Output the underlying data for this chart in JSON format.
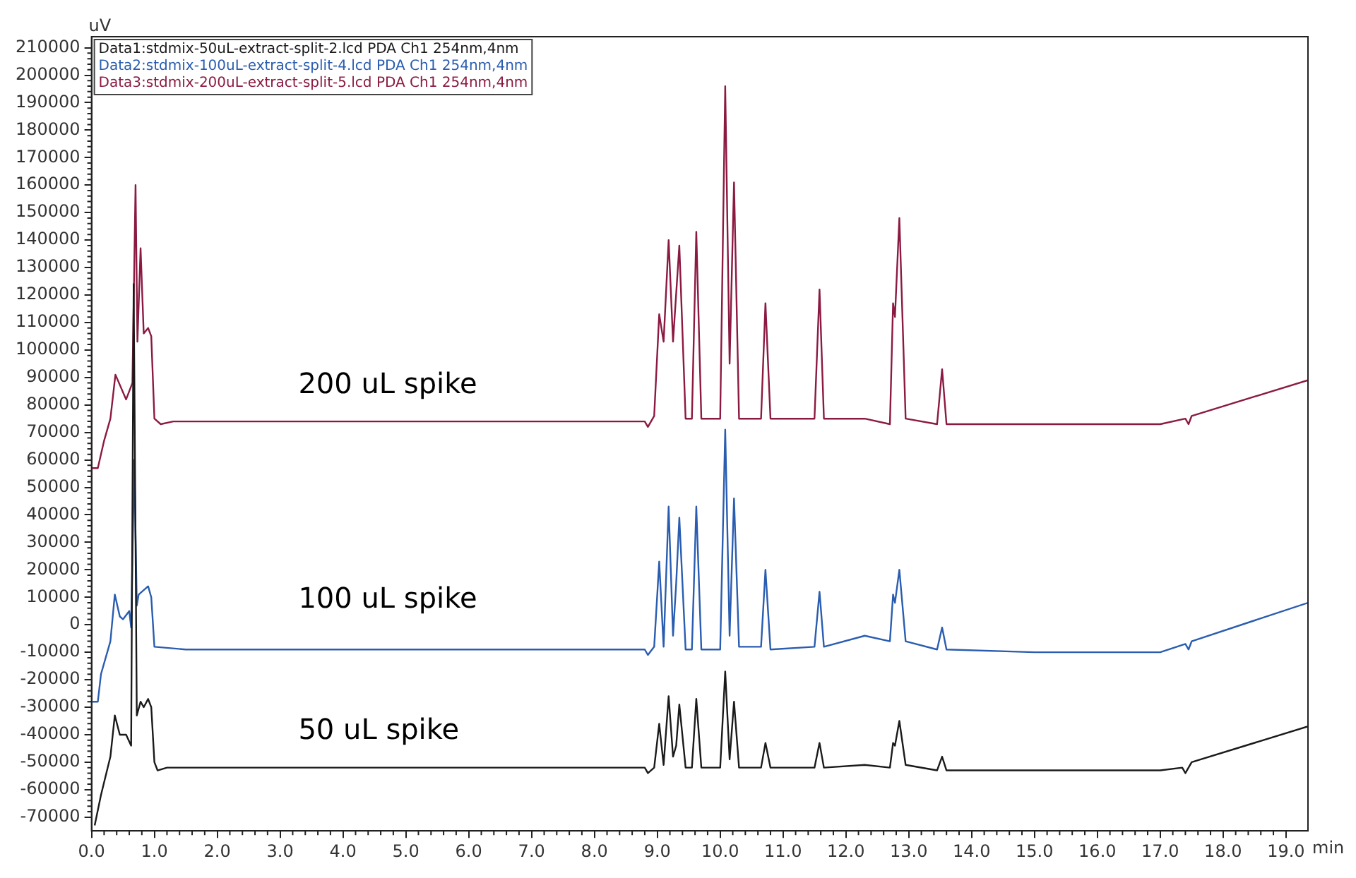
{
  "chart_data": {
    "type": "line",
    "xlabel": "min",
    "ylabel": "uV",
    "xlim": [
      0,
      19.35
    ],
    "ylim": [
      -75000,
      214000
    ],
    "xticks": [
      {
        "value": 0,
        "label": "0.0"
      },
      {
        "value": 1,
        "label": "1.0"
      },
      {
        "value": 2,
        "label": "2.0"
      },
      {
        "value": 3,
        "label": "3.0"
      },
      {
        "value": 4,
        "label": "4.0"
      },
      {
        "value": 5,
        "label": "5.0"
      },
      {
        "value": 6,
        "label": "6.0"
      },
      {
        "value": 7,
        "label": "7.0"
      },
      {
        "value": 8,
        "label": "8.0"
      },
      {
        "value": 9,
        "label": "9.0"
      },
      {
        "value": 10,
        "label": "10.0"
      },
      {
        "value": 11,
        "label": "11.0"
      },
      {
        "value": 12,
        "label": "12.0"
      },
      {
        "value": 13,
        "label": "13.0"
      },
      {
        "value": 14,
        "label": "14.0"
      },
      {
        "value": 15,
        "label": "15.0"
      },
      {
        "value": 16,
        "label": "16.0"
      },
      {
        "value": 17,
        "label": "17.0"
      },
      {
        "value": 18,
        "label": "18.0"
      },
      {
        "value": 19,
        "label": "19.0"
      }
    ],
    "yticks": [
      -70000,
      -60000,
      -50000,
      -40000,
      -30000,
      -20000,
      -10000,
      0,
      10000,
      20000,
      30000,
      40000,
      50000,
      60000,
      70000,
      80000,
      90000,
      100000,
      110000,
      120000,
      130000,
      140000,
      150000,
      160000,
      170000,
      180000,
      190000,
      200000,
      210000
    ],
    "grid": false,
    "legend": "top left",
    "marker": "none",
    "line_style": "solid",
    "series": [
      {
        "name": "Data1:stdmix-50uL-extract-split-2.lcd PDA Ch1 254nm,4nm",
        "color": "#1a1a1a",
        "x": [
          0.05,
          0.15,
          0.3,
          0.37,
          0.45,
          0.55,
          0.63,
          0.67,
          0.72,
          0.78,
          0.83,
          0.9,
          0.95,
          1.0,
          1.05,
          1.2,
          6.0,
          8.8,
          8.85,
          8.95,
          9.03,
          9.1,
          9.18,
          9.25,
          9.3,
          9.35,
          9.45,
          9.55,
          9.62,
          9.7,
          10.0,
          10.08,
          10.15,
          10.22,
          10.3,
          10.65,
          10.72,
          10.8,
          11.5,
          11.58,
          11.65,
          12.3,
          12.7,
          12.75,
          12.78,
          12.85,
          12.95,
          13.45,
          13.53,
          13.6,
          15.0,
          17.0,
          17.35,
          17.4,
          17.5,
          19.35
        ],
        "values": [
          -73000,
          -62000,
          -48000,
          -33000,
          -40000,
          -40000,
          -44000,
          124000,
          -33000,
          -28000,
          -30000,
          -27000,
          -30000,
          -50000,
          -53000,
          -52000,
          -52000,
          -52000,
          -54000,
          -52000,
          -36000,
          -51000,
          -26000,
          -48000,
          -44000,
          -29000,
          -52000,
          -52000,
          -27000,
          -52000,
          -52000,
          -17000,
          -49000,
          -28000,
          -52000,
          -52000,
          -43000,
          -52000,
          -52000,
          -43000,
          -52000,
          -51000,
          -52000,
          -43000,
          -44000,
          -35000,
          -51000,
          -53000,
          -48000,
          -53000,
          -53000,
          -53000,
          -52000,
          -54000,
          -50000,
          -37000
        ]
      },
      {
        "name": "Data2:stdmix-100uL-extract-split-4.lcd PDA Ch1 254nm,4nm",
        "color": "#2a5db0",
        "x": [
          0,
          0.1,
          0.15,
          0.3,
          0.37,
          0.45,
          0.5,
          0.6,
          0.63,
          0.68,
          0.72,
          0.75,
          0.9,
          0.95,
          1.0,
          1.5,
          6.0,
          8.8,
          8.85,
          8.95,
          9.03,
          9.1,
          9.18,
          9.25,
          9.3,
          9.35,
          9.45,
          9.55,
          9.62,
          9.7,
          10.0,
          10.08,
          10.15,
          10.22,
          10.3,
          10.65,
          10.72,
          10.8,
          11.5,
          11.58,
          11.65,
          12.3,
          12.7,
          12.75,
          12.78,
          12.85,
          12.95,
          13.45,
          13.53,
          13.6,
          15.0,
          17.0,
          17.4,
          17.45,
          17.5,
          19.35
        ],
        "values": [
          -28000,
          -28000,
          -18000,
          -6000,
          11000,
          3000,
          2000,
          5000,
          -1000,
          60000,
          7000,
          11000,
          14000,
          10000,
          -8000,
          -9000,
          -9000,
          -9000,
          -11000,
          -8000,
          23000,
          -8000,
          43000,
          -4000,
          15000,
          39000,
          -9000,
          -9000,
          43000,
          -9000,
          -9000,
          71000,
          -4000,
          46000,
          -8000,
          -8000,
          20000,
          -9000,
          -8000,
          12000,
          -8000,
          -4000,
          -6000,
          11000,
          8000,
          20000,
          -6000,
          -9000,
          -1000,
          -9000,
          -10000,
          -10000,
          -7000,
          -9000,
          -6000,
          8000
        ]
      },
      {
        "name": "Data3:stdmix-200uL-extract-split-5.lcd PDA Ch1 254nm,4nm",
        "color": "#8b1a42",
        "x": [
          0,
          0.1,
          0.2,
          0.3,
          0.38,
          0.55,
          0.65,
          0.7,
          0.73,
          0.78,
          0.83,
          0.9,
          0.95,
          1.0,
          1.1,
          1.3,
          6.0,
          8.8,
          8.85,
          8.95,
          9.03,
          9.1,
          9.18,
          9.25,
          9.35,
          9.45,
          9.55,
          9.62,
          9.7,
          10.0,
          10.08,
          10.15,
          10.22,
          10.3,
          10.65,
          10.72,
          10.8,
          11.5,
          11.58,
          11.65,
          12.3,
          12.7,
          12.75,
          12.78,
          12.85,
          12.95,
          13.45,
          13.53,
          13.6,
          15.0,
          17.0,
          17.4,
          17.45,
          17.5,
          19.35
        ],
        "values": [
          57000,
          57000,
          67000,
          75000,
          91000,
          82000,
          88000,
          160000,
          103000,
          137000,
          106000,
          108000,
          105000,
          75000,
          73000,
          74000,
          74000,
          74000,
          72000,
          76000,
          113000,
          103000,
          140000,
          103000,
          138000,
          75000,
          75000,
          143000,
          75000,
          75000,
          196000,
          95000,
          161000,
          75000,
          75000,
          117000,
          75000,
          75000,
          122000,
          75000,
          75000,
          73000,
          117000,
          112000,
          148000,
          75000,
          73000,
          93000,
          73000,
          73000,
          73000,
          75000,
          73000,
          76000,
          89000
        ]
      }
    ],
    "annotations": [
      "200 uL spike",
      "100 uL spike",
      "50 uL spike"
    ]
  }
}
